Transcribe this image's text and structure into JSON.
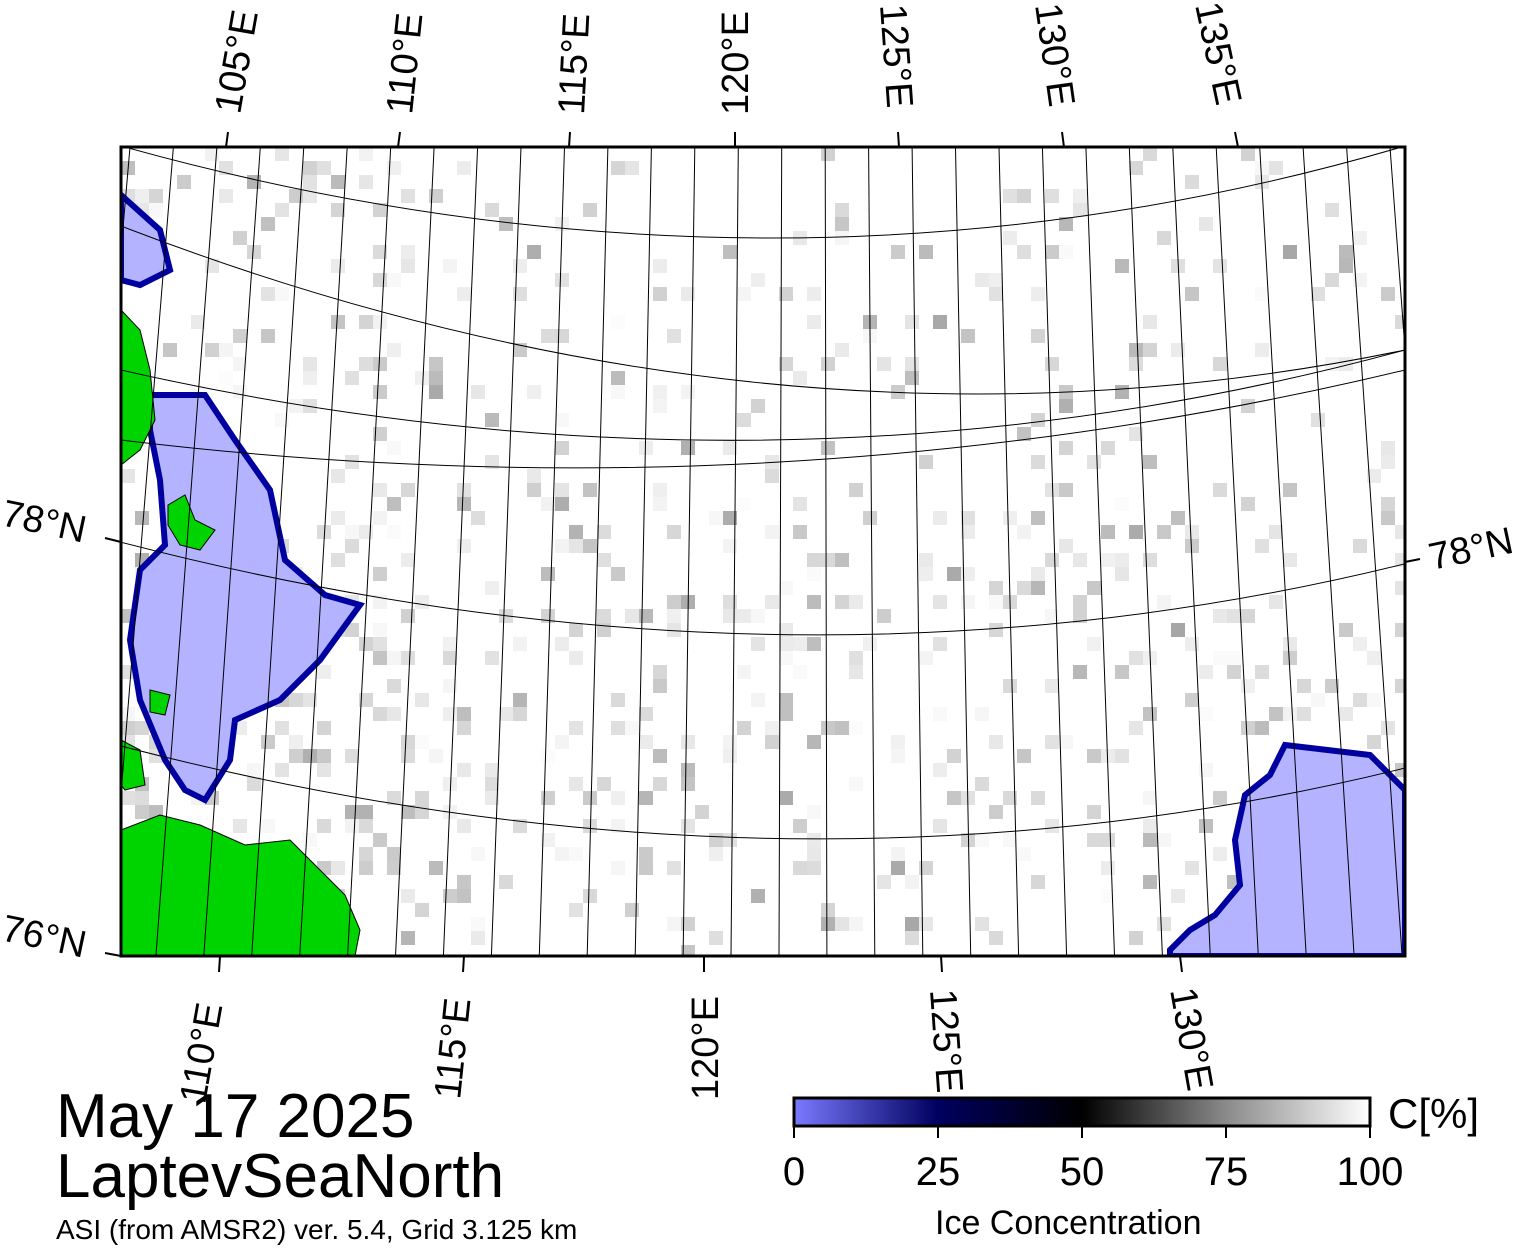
{
  "map": {
    "top_lon_labels": [
      "105°E",
      "110°E",
      "115°E",
      "120°E",
      "125°E",
      "130°E",
      "135°E"
    ],
    "bottom_lon_labels": [
      "110°E",
      "115°E",
      "120°E",
      "125°E",
      "130°E"
    ],
    "lat_labels": {
      "left_upper": "78°N",
      "left_lower": "76°N",
      "right_upper": "78°N"
    },
    "colors": {
      "land": "#00d400",
      "open_water": "#b3b3ff",
      "water_edge": "#0000a0",
      "ice_high": "#ffffff",
      "frame": "#000000"
    }
  },
  "info": {
    "date": "May 17 2025",
    "region": "LaptevSeaNorth",
    "source": "ASI (from AMSR2) ver. 5.4,  Grid 3.125 km"
  },
  "colorbar": {
    "ticks": [
      "0",
      "25",
      "50",
      "75",
      "100"
    ],
    "unit": "C[%]",
    "title": "Ice Concentration",
    "stops": [
      "#7a7aff",
      "#000060",
      "#000000",
      "#8a8a8a",
      "#ffffff"
    ]
  }
}
